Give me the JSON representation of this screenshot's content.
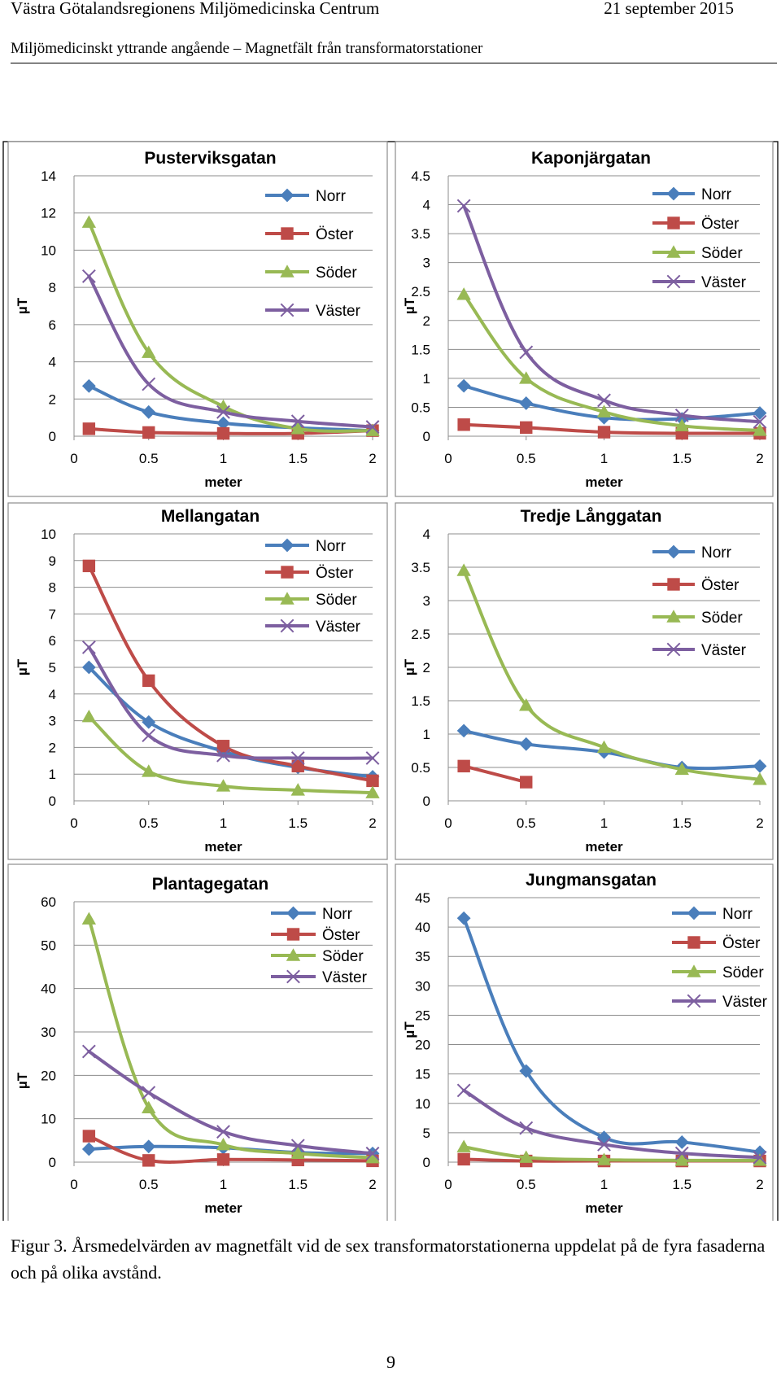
{
  "header": {
    "org": "Västra Götalandsregionens Miljömedicinska Centrum",
    "date": "21 september 2015",
    "subject": "Miljömedicinskt yttrande angående – Magnetfält från transformatorstationer"
  },
  "caption": "Figur 3. Årsmedelvärden av magnetfält vid de sex transformatorstationerna uppdelat på de fyra fasaderna och på olika avstånd.",
  "page_number": "9",
  "colors": {
    "Norr": "#4a7ebb",
    "Öster": "#be4b48",
    "Söder": "#98b954",
    "Väster": "#7d5fa0"
  },
  "markers": {
    "Norr": "diamond",
    "Öster": "square",
    "Söder": "triangle",
    "Väster": "x"
  },
  "chart_data": [
    {
      "type": "line",
      "title": "Pusterviksgatan",
      "xlabel": "meter",
      "ylabel": "µT",
      "xlim": [
        0,
        2
      ],
      "xticks": [
        "0",
        "0.5",
        "1",
        "1.5",
        "2"
      ],
      "ylim": [
        0,
        14
      ],
      "yticks": [
        "0",
        "2",
        "4",
        "6",
        "8",
        "10",
        "12",
        "14"
      ],
      "legend": "upper-right",
      "series": [
        {
          "name": "Norr",
          "x": [
            0.1,
            0.5,
            1,
            1.5,
            2
          ],
          "values": [
            2.7,
            1.3,
            0.7,
            0.45,
            0.3
          ]
        },
        {
          "name": "Öster",
          "x": [
            0.1,
            0.5,
            1,
            1.5,
            2
          ],
          "values": [
            0.4,
            0.2,
            0.15,
            0.15,
            0.3
          ]
        },
        {
          "name": "Söder",
          "x": [
            0.1,
            0.5,
            1,
            1.5,
            2
          ],
          "values": [
            11.5,
            4.5,
            1.6,
            0.4,
            0.3
          ]
        },
        {
          "name": "Väster",
          "x": [
            0.1,
            0.5,
            1,
            1.5,
            2
          ],
          "values": [
            8.6,
            2.8,
            1.3,
            0.8,
            0.5
          ]
        }
      ]
    },
    {
      "type": "line",
      "title": "Kaponjärgatan",
      "xlabel": "meter",
      "ylabel": "µT",
      "xlim": [
        0,
        2
      ],
      "xticks": [
        "0",
        "0.5",
        "1",
        "1.5",
        "2"
      ],
      "ylim": [
        0,
        4.5
      ],
      "yticks": [
        "0",
        "0.5",
        "1",
        "1.5",
        "2",
        "2.5",
        "3",
        "3.5",
        "4",
        "4.5"
      ],
      "legend": "upper-right",
      "series": [
        {
          "name": "Norr",
          "x": [
            0.1,
            0.5,
            1,
            1.5,
            2
          ],
          "values": [
            0.87,
            0.57,
            0.32,
            0.3,
            0.4
          ]
        },
        {
          "name": "Öster",
          "x": [
            0.1,
            0.5,
            1,
            1.5,
            2
          ],
          "values": [
            0.2,
            0.15,
            0.07,
            0.05,
            0.05
          ]
        },
        {
          "name": "Söder",
          "x": [
            0.1,
            0.5,
            1,
            1.5,
            2
          ],
          "values": [
            2.45,
            1.0,
            0.42,
            0.18,
            0.1
          ]
        },
        {
          "name": "Väster",
          "x": [
            0.1,
            0.5,
            1,
            1.5,
            2
          ],
          "values": [
            3.98,
            1.45,
            0.62,
            0.36,
            0.25
          ]
        }
      ]
    },
    {
      "type": "line",
      "title": "Mellangatan",
      "xlabel": "meter",
      "ylabel": "µT",
      "xlim": [
        0,
        2
      ],
      "xticks": [
        "0",
        "0.5",
        "1",
        "1.5",
        "2"
      ],
      "ylim": [
        0,
        10
      ],
      "yticks": [
        "0",
        "1",
        "2",
        "3",
        "4",
        "5",
        "6",
        "7",
        "8",
        "9",
        "10"
      ],
      "legend": "upper-right",
      "series": [
        {
          "name": "Norr",
          "x": [
            0.1,
            0.5,
            1,
            1.5,
            2
          ],
          "values": [
            5.0,
            2.95,
            1.85,
            1.25,
            0.9
          ]
        },
        {
          "name": "Öster",
          "x": [
            0.1,
            0.5,
            1,
            1.5,
            2
          ],
          "values": [
            8.8,
            4.5,
            2.05,
            1.3,
            0.75
          ]
        },
        {
          "name": "Söder",
          "x": [
            0.1,
            0.5,
            1,
            1.5,
            2
          ],
          "values": [
            3.15,
            1.1,
            0.55,
            0.4,
            0.3
          ]
        },
        {
          "name": "Väster",
          "x": [
            0.1,
            0.5,
            1,
            1.5,
            2
          ],
          "values": [
            5.75,
            2.45,
            1.7,
            1.6,
            1.6
          ]
        }
      ]
    },
    {
      "type": "line",
      "title": "Tredje Långgatan",
      "xlabel": "meter",
      "ylabel": "µT",
      "xlim": [
        0,
        2
      ],
      "xticks": [
        "0",
        "0.5",
        "1",
        "1.5",
        "2"
      ],
      "ylim": [
        0,
        4
      ],
      "yticks": [
        "0",
        "0.5",
        "1",
        "1.5",
        "2",
        "2.5",
        "3",
        "3.5",
        "4"
      ],
      "legend": "upper-right",
      "series": [
        {
          "name": "Norr",
          "x": [
            0.1,
            0.5,
            1,
            1.5,
            2
          ],
          "values": [
            1.05,
            0.85,
            0.73,
            0.5,
            0.52
          ]
        },
        {
          "name": "Öster",
          "x": [
            0.1,
            0.5
          ],
          "values": [
            0.52,
            0.28
          ]
        },
        {
          "name": "Söder",
          "x": [
            0.1,
            0.5,
            1,
            1.5,
            2
          ],
          "values": [
            3.45,
            1.43,
            0.8,
            0.47,
            0.32
          ]
        },
        {
          "name": "Väster",
          "x": [],
          "values": []
        }
      ]
    },
    {
      "type": "line",
      "title": "Plantagegatan",
      "xlabel": "meter",
      "ylabel": "µT",
      "xlim": [
        0,
        2
      ],
      "xticks": [
        "0",
        "0.5",
        "1",
        "1.5",
        "2"
      ],
      "ylim": [
        0,
        60
      ],
      "yticks": [
        "0",
        "10",
        "20",
        "30",
        "40",
        "50",
        "60"
      ],
      "legend": "upper-right",
      "series": [
        {
          "name": "Norr",
          "x": [
            0.1,
            0.5,
            1,
            1.5,
            2
          ],
          "values": [
            3.0,
            3.6,
            3.3,
            2.2,
            2.0
          ]
        },
        {
          "name": "Öster",
          "x": [
            0.1,
            0.5,
            1,
            1.5,
            2
          ],
          "values": [
            6.0,
            0.4,
            0.6,
            0.5,
            0.3
          ]
        },
        {
          "name": "Söder",
          "x": [
            0.1,
            0.5,
            1,
            1.5,
            2
          ],
          "values": [
            56.0,
            12.5,
            4.0,
            2.0,
            1.0
          ]
        },
        {
          "name": "Väster",
          "x": [
            0.1,
            0.5,
            1,
            1.5,
            2
          ],
          "values": [
            25.5,
            16.0,
            7.0,
            3.8,
            2.0
          ]
        }
      ]
    },
    {
      "type": "line",
      "title": "Jungmansgatan",
      "xlabel": "meter",
      "ylabel": "µT",
      "xlim": [
        0,
        2
      ],
      "xticks": [
        "0",
        "0.5",
        "1",
        "1.5",
        "2"
      ],
      "ylim": [
        0,
        45
      ],
      "yticks": [
        "0",
        "5",
        "10",
        "15",
        "20",
        "25",
        "30",
        "35",
        "40",
        "45"
      ],
      "legend": "upper-right",
      "series": [
        {
          "name": "Norr",
          "x": [
            0.1,
            0.5,
            1,
            1.5,
            2
          ],
          "values": [
            41.5,
            15.5,
            4.2,
            3.4,
            1.7
          ]
        },
        {
          "name": "Öster",
          "x": [
            0.1,
            0.5,
            1,
            1.5,
            2
          ],
          "values": [
            0.5,
            0.2,
            0.2,
            0.2,
            0.2
          ]
        },
        {
          "name": "Söder",
          "x": [
            0.1,
            0.5,
            1,
            1.5,
            2
          ],
          "values": [
            2.6,
            0.8,
            0.4,
            0.3,
            0.3
          ]
        },
        {
          "name": "Väster",
          "x": [
            0.1,
            0.5,
            1,
            1.5,
            2
          ],
          "values": [
            12.2,
            5.8,
            3.0,
            1.5,
            0.8
          ]
        }
      ]
    }
  ]
}
